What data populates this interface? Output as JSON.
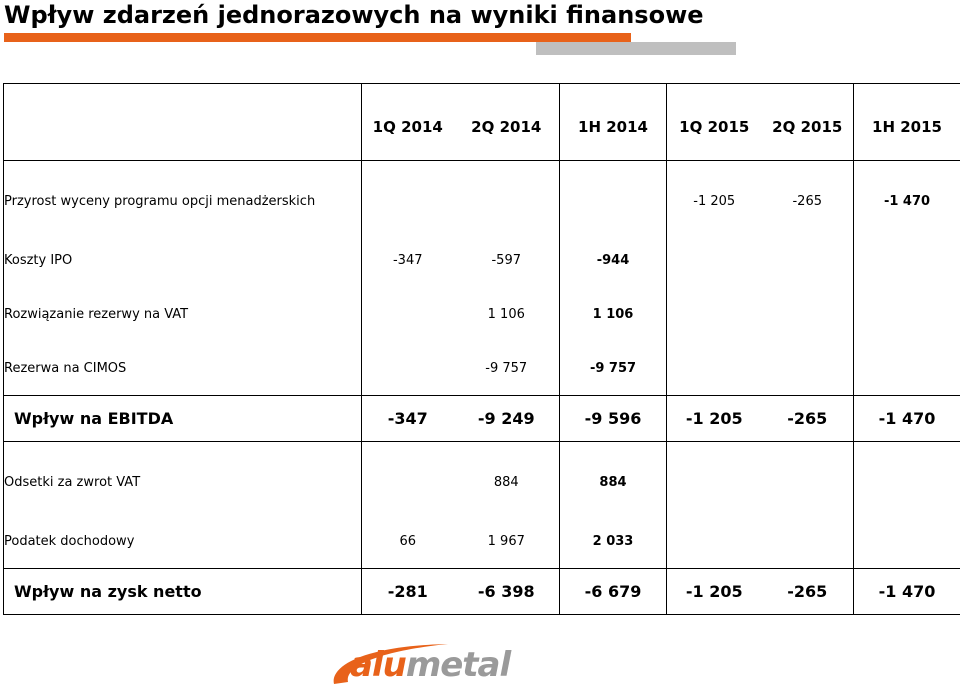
{
  "title": "Wpływ zdarzeń jednorazowych na wyniki finansowe",
  "colors": {
    "accent_orange": "#e8621a",
    "bar_grey": "#bfbfbf",
    "logo_grey": "#9a9a9a"
  },
  "table": {
    "headers": [
      "",
      "1Q 2014",
      "2Q 2014",
      "1H 2014",
      "1Q 2015",
      "2Q 2015",
      "1H 2015"
    ],
    "rows": [
      {
        "label": "Przyrost wyceny programu opcji menadżerskich",
        "values": [
          "",
          "",
          "",
          "-1 205",
          "-265",
          "-1 470"
        ]
      },
      {
        "label": "Koszty IPO",
        "values": [
          "-347",
          "-597",
          "-944",
          "",
          "",
          ""
        ]
      },
      {
        "label": "Rozwiązanie rezerwy na VAT",
        "values": [
          "",
          "1 106",
          "1 106",
          "",
          "",
          ""
        ]
      },
      {
        "label": "Rezerwa na CIMOS",
        "values": [
          "",
          "-9 757",
          "-9 757",
          "",
          "",
          ""
        ]
      },
      {
        "label": "Wpływ na EBITDA",
        "values": [
          "-347",
          "-9 249",
          "-9 596",
          "-1 205",
          "-265",
          "-1 470"
        ]
      },
      {
        "label": "Odsetki za zwrot VAT",
        "values": [
          "",
          "884",
          "884",
          "",
          "",
          ""
        ]
      },
      {
        "label": "Podatek dochodowy",
        "values": [
          "66",
          "1 967",
          "2 033",
          "",
          "",
          ""
        ]
      },
      {
        "label": "Wpływ na zysk netto",
        "values": [
          "-281",
          "-6 398",
          "-6 679",
          "-1 205",
          "-265",
          "-1 470"
        ]
      }
    ]
  },
  "logo": {
    "part1": "alu",
    "part2": "metal",
    "icon": "swoosh-icon"
  }
}
